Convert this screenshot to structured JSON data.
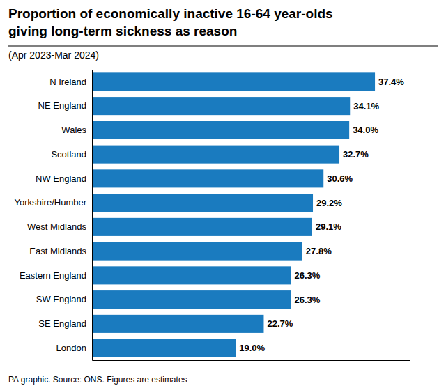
{
  "chart_data": {
    "type": "bar",
    "orientation": "horizontal",
    "title": [
      "Proportion of economically inactive 16-64 year-olds",
      "giving long-term sickness as reason"
    ],
    "subtitle": "(Apr 2023-Mar 2024)",
    "caption": "PA graphic. Source: ONS. Figures are estimates",
    "categories": [
      "N Ireland",
      "NE England",
      "Wales",
      "Scotland",
      "NW England",
      "Yorkshire/Humber",
      "West Midlands",
      "East Midlands",
      "Eastern England",
      "SW England",
      "SE England",
      "London"
    ],
    "values": [
      37.4,
      34.1,
      34.0,
      32.7,
      30.6,
      29.2,
      29.1,
      27.8,
      26.3,
      26.3,
      22.7,
      19.0
    ],
    "value_labels": [
      "37.4%",
      "34.1%",
      "34.0%",
      "32.7%",
      "30.6%",
      "29.2%",
      "29.1%",
      "27.8%",
      "26.3%",
      "26.3%",
      "22.7%",
      "19.0%"
    ],
    "color": "#1a7bbf",
    "xlim": [
      0,
      42
    ],
    "data_labels": true,
    "tick_labels": "y",
    "grid": false
  }
}
